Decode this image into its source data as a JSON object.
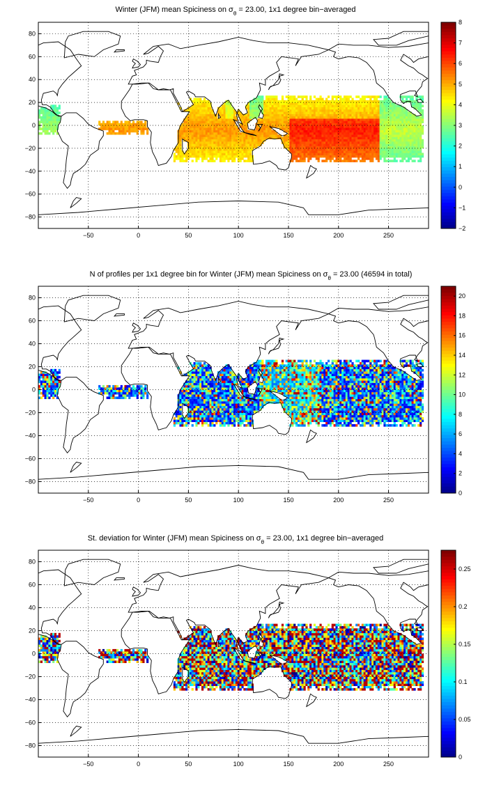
{
  "panels": [
    {
      "id": "mean",
      "title_prefix": "Winter (JFM) mean Spiciness on σ",
      "title_sub": "θ",
      "title_suffix": " = 23.00, 1x1 degree bin−averaged",
      "colorbar": {
        "min": -2,
        "max": 8,
        "ticks": [
          "8",
          "7",
          "6",
          "5",
          "4",
          "3",
          "2",
          "1",
          "0",
          "−1",
          "−2"
        ]
      }
    },
    {
      "id": "count",
      "title_prefix": "N of profiles per 1x1 degree bin for Winter (JFM) mean Spiciness on σ",
      "title_sub": "θ",
      "title_suffix": " = 23.00 (46594 in total)",
      "colorbar": {
        "min": 0,
        "max": 21,
        "ticks": [
          "20",
          "18",
          "16",
          "14",
          "12",
          "10",
          "8",
          "6",
          "4",
          "2",
          "0"
        ]
      }
    },
    {
      "id": "std",
      "title_prefix": "St. deviation for Winter (JFM) mean Spiciness on σ",
      "title_sub": "θ",
      "title_suffix": " = 23.00, 1x1 degree bin−averaged",
      "colorbar": {
        "min": 0,
        "max": 0.275,
        "ticks": [
          "0.25",
          "0.2",
          "0.15",
          "0.1",
          "0.05",
          "0"
        ]
      }
    }
  ],
  "axes": {
    "x_ticks": [
      "−50",
      "0",
      "50",
      "100",
      "150",
      "200",
      "250"
    ],
    "y_ticks": [
      "80",
      "60",
      "40",
      "20",
      "0",
      "−20",
      "−40",
      "−60",
      "−80"
    ],
    "x_range": [
      -100,
      290
    ],
    "y_range": [
      -90,
      90
    ],
    "grid": "dotted"
  },
  "colors": {
    "colormap": "jet",
    "coastline": "#000000"
  }
}
